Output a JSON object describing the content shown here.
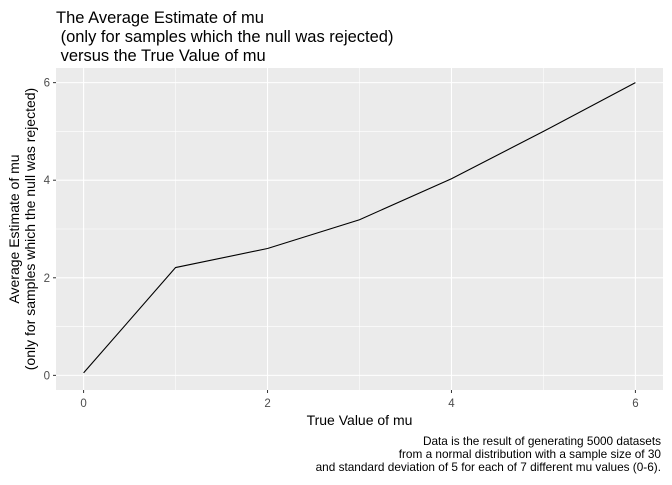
{
  "chart_data": {
    "type": "line",
    "title_lines": [
      "The Average Estimate of mu",
      " (only for samples which the null was rejected)",
      " versus the True Value of mu"
    ],
    "xlabel": "True Value of mu",
    "ylabel_lines": [
      "Average Estimate of mu",
      "(only for samples which the null was rejected)"
    ],
    "caption_lines": [
      "Data is the result of generating 5000 datasets",
      "from a normal distribution with a sample size of 30",
      "and standard deviation of 5 for each of 7 different mu values (0-6)."
    ],
    "x": [
      0,
      1,
      2,
      3,
      4,
      5,
      6
    ],
    "series": [
      {
        "values": [
          0.05,
          2.21,
          2.6,
          3.19,
          4.03,
          5.0,
          6.0
        ],
        "color": "#000000"
      }
    ],
    "x_ticks": [
      0,
      2,
      4,
      6
    ],
    "y_ticks": [
      0,
      2,
      4,
      6
    ],
    "x_tick_labels": [
      "0",
      "2",
      "4",
      "6"
    ],
    "y_tick_labels": [
      "0",
      "2",
      "4",
      "6"
    ],
    "xlim": [
      -0.3,
      6.3
    ],
    "ylim": [
      -0.3,
      6.3
    ],
    "grid": true,
    "panel_background": "#ebebeb",
    "grid_color": "#ffffff",
    "legend": "none"
  }
}
